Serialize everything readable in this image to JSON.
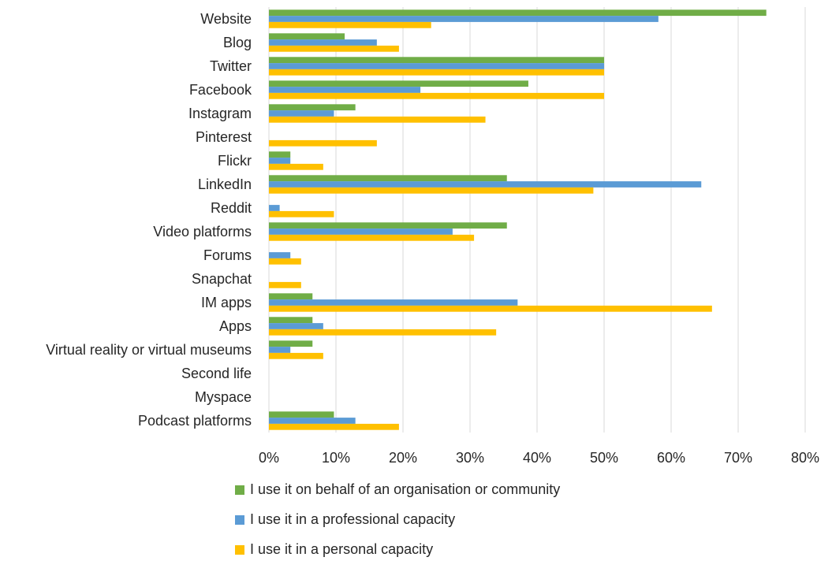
{
  "chart_data": {
    "type": "bar",
    "orientation": "horizontal",
    "categories": [
      "Website",
      "Blog",
      "Twitter",
      "Facebook",
      "Instagram",
      "Pinterest",
      "Flickr",
      "LinkedIn",
      "Reddit",
      "Video platforms",
      "Forums",
      "Snapchat",
      "IM apps",
      "Apps",
      "Virtual reality or virtual museums",
      "Second life",
      "Myspace",
      "Podcast platforms"
    ],
    "series": [
      {
        "name": "I use it on behalf of an organisation or community",
        "color": "#70ad47",
        "values": [
          74.2,
          11.3,
          50.0,
          38.7,
          12.9,
          0,
          3.2,
          35.5,
          0,
          35.5,
          0,
          0,
          6.5,
          6.5,
          6.5,
          0,
          0,
          9.7
        ]
      },
      {
        "name": "I use it in a professional capacity",
        "color": "#5b9bd5",
        "values": [
          58.1,
          16.1,
          50.0,
          22.6,
          9.7,
          0,
          3.2,
          64.5,
          1.6,
          27.4,
          3.2,
          0,
          37.1,
          8.1,
          3.2,
          0,
          0,
          12.9
        ]
      },
      {
        "name": "I use it in a personal capacity",
        "color": "#ffc000",
        "values": [
          24.2,
          19.4,
          50.0,
          50.0,
          32.3,
          16.1,
          8.1,
          48.4,
          9.7,
          30.6,
          4.8,
          4.8,
          66.1,
          33.9,
          8.1,
          0,
          0,
          19.4
        ]
      }
    ],
    "xlim": [
      0,
      80
    ],
    "xticks": [
      "0%",
      "10%",
      "20%",
      "30%",
      "40%",
      "50%",
      "60%",
      "70%",
      "80%"
    ],
    "grid": true,
    "legend_position": "bottom"
  }
}
